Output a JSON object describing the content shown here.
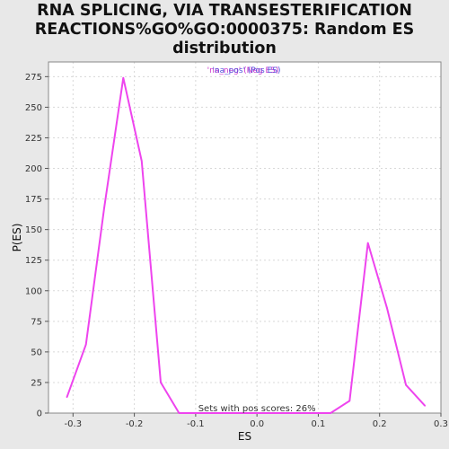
{
  "chart_data": {
    "type": "line",
    "title_lines": [
      "RNA SPLICING, VIA TRANSESTERIFICATION",
      "REACTIONS%GO%GO:0000375: Random ES",
      "distribution"
    ],
    "xlabel": "ES",
    "ylabel": "P(ES)",
    "xlim": [
      -0.34,
      0.3
    ],
    "ylim": [
      0,
      287
    ],
    "xticks": [
      -0.3,
      -0.2,
      -0.1,
      0.0,
      0.1,
      0.2,
      0.3
    ],
    "xtick_labels": [
      "-0.3",
      "-0.2",
      "-0.1",
      "0.0",
      "0.1",
      "0.2",
      "0.3"
    ],
    "yticks": [
      0,
      25,
      50,
      75,
      100,
      125,
      150,
      175,
      200,
      225,
      250,
      275
    ],
    "ytick_labels": [
      "0",
      "25",
      "50",
      "75",
      "100",
      "125",
      "150",
      "175",
      "200",
      "225",
      "250",
      "275"
    ],
    "grid": true,
    "legend_text": "'na_neg' (Neg ES)",
    "legend_overlap_text": "'na_pos' (Pos ES)",
    "annotation": "Sets with pos scores: 26%",
    "series": [
      {
        "color": "#ee44ee",
        "x": [
          -0.31,
          -0.279,
          -0.249,
          -0.218,
          -0.188,
          -0.157,
          -0.127,
          -0.096,
          -0.065,
          0.12,
          0.151,
          0.181,
          0.212,
          0.243,
          0.274
        ],
        "y": [
          13,
          56,
          168,
          274,
          206,
          25,
          0,
          0,
          0,
          0,
          10,
          139,
          86,
          23,
          6
        ]
      }
    ]
  }
}
